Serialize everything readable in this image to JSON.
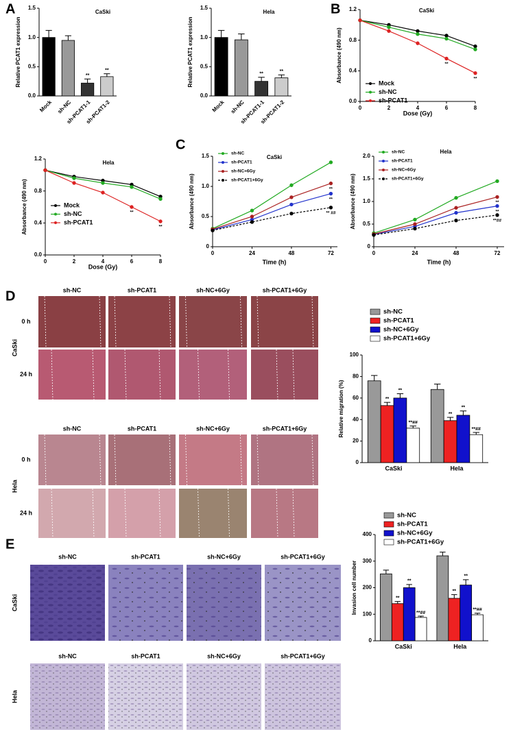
{
  "figure": {
    "panel_labels": [
      "A",
      "B",
      "C",
      "D",
      "E"
    ],
    "migration": {
      "columns": [
        "sh-NC",
        "sh-PCAT1",
        "sh-NC+6Gy",
        "sh-PCAT1+6Gy"
      ],
      "rows": [
        "0 h",
        "24 h"
      ],
      "cell_lines": [
        "CaSki",
        "Hela"
      ]
    },
    "invasion": {
      "columns": [
        "sh-NC",
        "sh-PCAT1",
        "sh-NC+6Gy",
        "sh-PCAT1+6Gy"
      ],
      "cell_lines": [
        "CaSki",
        "Hela"
      ]
    }
  },
  "chart_data": [
    {
      "type": "bar",
      "title": "CaSki",
      "ylabel": "Relative PCAT1 expression",
      "categories": [
        "Mock",
        "sh-NC",
        "sh-PCAT1-1",
        "sh-PCAT1-2"
      ],
      "values": [
        1.0,
        0.95,
        0.22,
        0.33
      ],
      "errors": [
        0.12,
        0.08,
        0.07,
        0.05
      ],
      "colors": [
        "#000000",
        "#999999",
        "#333333",
        "#cccccc"
      ],
      "annotations": [
        null,
        null,
        "**",
        "**"
      ],
      "ylim": [
        0,
        1.5
      ],
      "yticks": [
        {
          "value": 0,
          "label": "0.0"
        },
        0.5,
        {
          "value": 1,
          "label": "1.0"
        },
        1.5
      ]
    },
    {
      "type": "bar",
      "title": "Hela",
      "ylabel": "Relative PCAT1 expression",
      "categories": [
        "Mock",
        "sh-NC",
        "sh-PCAT1-1",
        "sh-PCAT1-2"
      ],
      "values": [
        1.0,
        0.96,
        0.25,
        0.31
      ],
      "errors": [
        0.12,
        0.1,
        0.07,
        0.05
      ],
      "colors": [
        "#000000",
        "#999999",
        "#333333",
        "#cccccc"
      ],
      "annotations": [
        null,
        null,
        "**",
        "**"
      ],
      "ylim": [
        0,
        1.5
      ],
      "yticks": [
        {
          "value": 0,
          "label": "0.0"
        },
        0.5,
        {
          "value": 1,
          "label": "1.0"
        },
        1.5
      ]
    },
    {
      "type": "line",
      "title": "CaSki",
      "xlabel": "Dose (Gy)",
      "ylabel": "Absorbance (490 nm)",
      "x": [
        0,
        2,
        4,
        6,
        8
      ],
      "xlim": [
        0,
        8
      ],
      "xticks": [
        0,
        2,
        4,
        6,
        8
      ],
      "ylim": [
        0,
        1.2
      ],
      "yticks": [
        {
          "value": 0,
          "label": "0.0"
        },
        0.4,
        0.8,
        1.2
      ],
      "legend": "lower left",
      "series": [
        {
          "name": "Mock",
          "color": "#000000",
          "values": [
            1.06,
            1.0,
            0.92,
            0.86,
            0.72
          ],
          "annotations": [
            null,
            null,
            null,
            null,
            null
          ]
        },
        {
          "name": "sh-NC",
          "color": "#22aa22",
          "values": [
            1.06,
            0.97,
            0.88,
            0.82,
            0.68
          ],
          "annotations": [
            null,
            null,
            null,
            null,
            null
          ]
        },
        {
          "name": "sh-PCAT1",
          "color": "#dd2222",
          "values": [
            1.06,
            0.92,
            0.76,
            0.56,
            0.37
          ],
          "annotations": [
            null,
            null,
            null,
            "**",
            "**"
          ]
        }
      ]
    },
    {
      "type": "line",
      "title": "Hela",
      "xlabel": "Dose (Gy)",
      "ylabel": "Absorbance (490 nm)",
      "x": [
        0,
        2,
        4,
        6,
        8
      ],
      "xlim": [
        0,
        8
      ],
      "xticks": [
        0,
        2,
        4,
        6,
        8
      ],
      "ylim": [
        0,
        1.2
      ],
      "yticks": [
        {
          "value": 0,
          "label": "0.0"
        },
        0.4,
        0.8,
        1.2
      ],
      "legend": "lower left",
      "series": [
        {
          "name": "Mock",
          "color": "#000000",
          "values": [
            1.06,
            0.98,
            0.93,
            0.88,
            0.73
          ],
          "annotations": [
            null,
            null,
            null,
            null,
            null
          ]
        },
        {
          "name": "sh-NC",
          "color": "#22aa22",
          "values": [
            1.06,
            0.96,
            0.9,
            0.85,
            0.7
          ],
          "annotations": [
            null,
            null,
            null,
            null,
            null
          ]
        },
        {
          "name": "sh-PCAT1",
          "color": "#dd2222",
          "values": [
            1.06,
            0.9,
            0.78,
            0.6,
            0.42
          ],
          "annotations": [
            null,
            null,
            null,
            "**",
            "**"
          ]
        }
      ]
    },
    {
      "type": "line",
      "title": "CaSki",
      "xlabel": "Time (h)",
      "ylabel": "Absorbance (490 nm)",
      "x": [
        0,
        24,
        48,
        72
      ],
      "xlim": [
        0,
        76
      ],
      "xticks": [
        0,
        24,
        48,
        72
      ],
      "ylim": [
        0,
        1.5
      ],
      "yticks": [
        0,
        0.5,
        {
          "value": 1,
          "label": "1.0"
        },
        1.5
      ],
      "legend": "upper left",
      "series": [
        {
          "name": "sh-NC",
          "color": "#22aa22",
          "values": [
            0.3,
            0.6,
            1.02,
            1.4
          ],
          "annotations": [
            null,
            null,
            null,
            null
          ]
        },
        {
          "name": "sh-PCAT1",
          "color": "#2233cc",
          "values": [
            0.28,
            0.45,
            0.7,
            0.88
          ],
          "annotations": [
            null,
            null,
            null,
            "**"
          ]
        },
        {
          "name": "sh-NC+6Gy",
          "color": "#aa2222",
          "values": [
            0.29,
            0.5,
            0.82,
            1.05
          ],
          "annotations": [
            null,
            null,
            null,
            "**"
          ]
        },
        {
          "name": "sh-PCAT1+6Gy",
          "color": "#000000",
          "dashed": true,
          "values": [
            0.27,
            0.41,
            0.55,
            0.65
          ],
          "annotations": [
            null,
            null,
            null,
            "** ##"
          ]
        }
      ]
    },
    {
      "type": "line",
      "title": "Hela",
      "xlabel": "Time (h)",
      "ylabel": "Absorbance (490 nm)",
      "x": [
        0,
        24,
        48,
        72
      ],
      "xlim": [
        0,
        76
      ],
      "xticks": [
        0,
        24,
        48,
        72
      ],
      "ylim": [
        0,
        2
      ],
      "yticks": [
        0,
        0.5,
        {
          "value": 1,
          "label": "1.0"
        },
        1.5,
        {
          "value": 2,
          "label": "2.0"
        }
      ],
      "legend": "upper left",
      "series": [
        {
          "name": "sh-NC",
          "color": "#22aa22",
          "values": [
            0.3,
            0.6,
            1.08,
            1.45
          ],
          "annotations": [
            null,
            null,
            null,
            null
          ]
        },
        {
          "name": "sh-PCAT1",
          "color": "#2233cc",
          "values": [
            0.27,
            0.45,
            0.75,
            0.9
          ],
          "annotations": [
            null,
            null,
            null,
            "**"
          ]
        },
        {
          "name": "sh-NC+6Gy",
          "color": "#aa2222",
          "values": [
            0.28,
            0.5,
            0.86,
            1.1
          ],
          "annotations": [
            null,
            null,
            null,
            "**"
          ]
        },
        {
          "name": "sh-PCAT1+6Gy",
          "color": "#000000",
          "dashed": true,
          "values": [
            0.26,
            0.4,
            0.58,
            0.7
          ],
          "annotations": [
            null,
            null,
            null,
            "**##"
          ]
        }
      ]
    },
    {
      "type": "grouped-bar",
      "ylabel": "Relative migration (%)",
      "categories": [
        "CaSki",
        "Hela"
      ],
      "ylim": [
        0,
        100
      ],
      "yticks": [
        0,
        20,
        40,
        60,
        80,
        100
      ],
      "legend": "top",
      "series": [
        {
          "name": "sh-NC",
          "color": "#999999",
          "values": [
            76,
            68
          ],
          "errors": [
            5,
            5
          ],
          "annotations": [
            null,
            null
          ]
        },
        {
          "name": "sh-PCAT1",
          "color": "#ee2222",
          "values": [
            53,
            39
          ],
          "errors": [
            3,
            3
          ],
          "annotations": [
            "**",
            "**"
          ]
        },
        {
          "name": "sh-NC+6Gy",
          "color": "#1111cc",
          "values": [
            60,
            44
          ],
          "errors": [
            4,
            4
          ],
          "annotations": [
            "**",
            "**"
          ]
        },
        {
          "name": "sh-PCAT1+6Gy",
          "color": "#ffffff",
          "values": [
            32,
            26
          ],
          "errors": [
            2,
            2
          ],
          "annotations": [
            "**##",
            "**##"
          ]
        }
      ]
    },
    {
      "type": "grouped-bar",
      "ylabel": "Invasion cell number",
      "categories": [
        "CaSki",
        "Hela"
      ],
      "ylim": [
        0,
        400
      ],
      "yticks": [
        0,
        100,
        200,
        300,
        400
      ],
      "legend": "top",
      "series": [
        {
          "name": "sh-NC",
          "color": "#999999",
          "values": [
            252,
            320
          ],
          "errors": [
            14,
            14
          ],
          "annotations": [
            null,
            null
          ]
        },
        {
          "name": "sh-PCAT1",
          "color": "#ee2222",
          "values": [
            140,
            160
          ],
          "errors": [
            8,
            14
          ],
          "annotations": [
            "**",
            "**"
          ]
        },
        {
          "name": "sh-NC+6Gy",
          "color": "#1111cc",
          "values": [
            200,
            210
          ],
          "errors": [
            12,
            20
          ],
          "annotations": [
            "**",
            "**"
          ]
        },
        {
          "name": "sh-PCAT1+6Gy",
          "color": "#ffffff",
          "values": [
            88,
            98
          ],
          "errors": [
            5,
            6
          ],
          "annotations": [
            "**##",
            "**##"
          ]
        }
      ]
    }
  ]
}
